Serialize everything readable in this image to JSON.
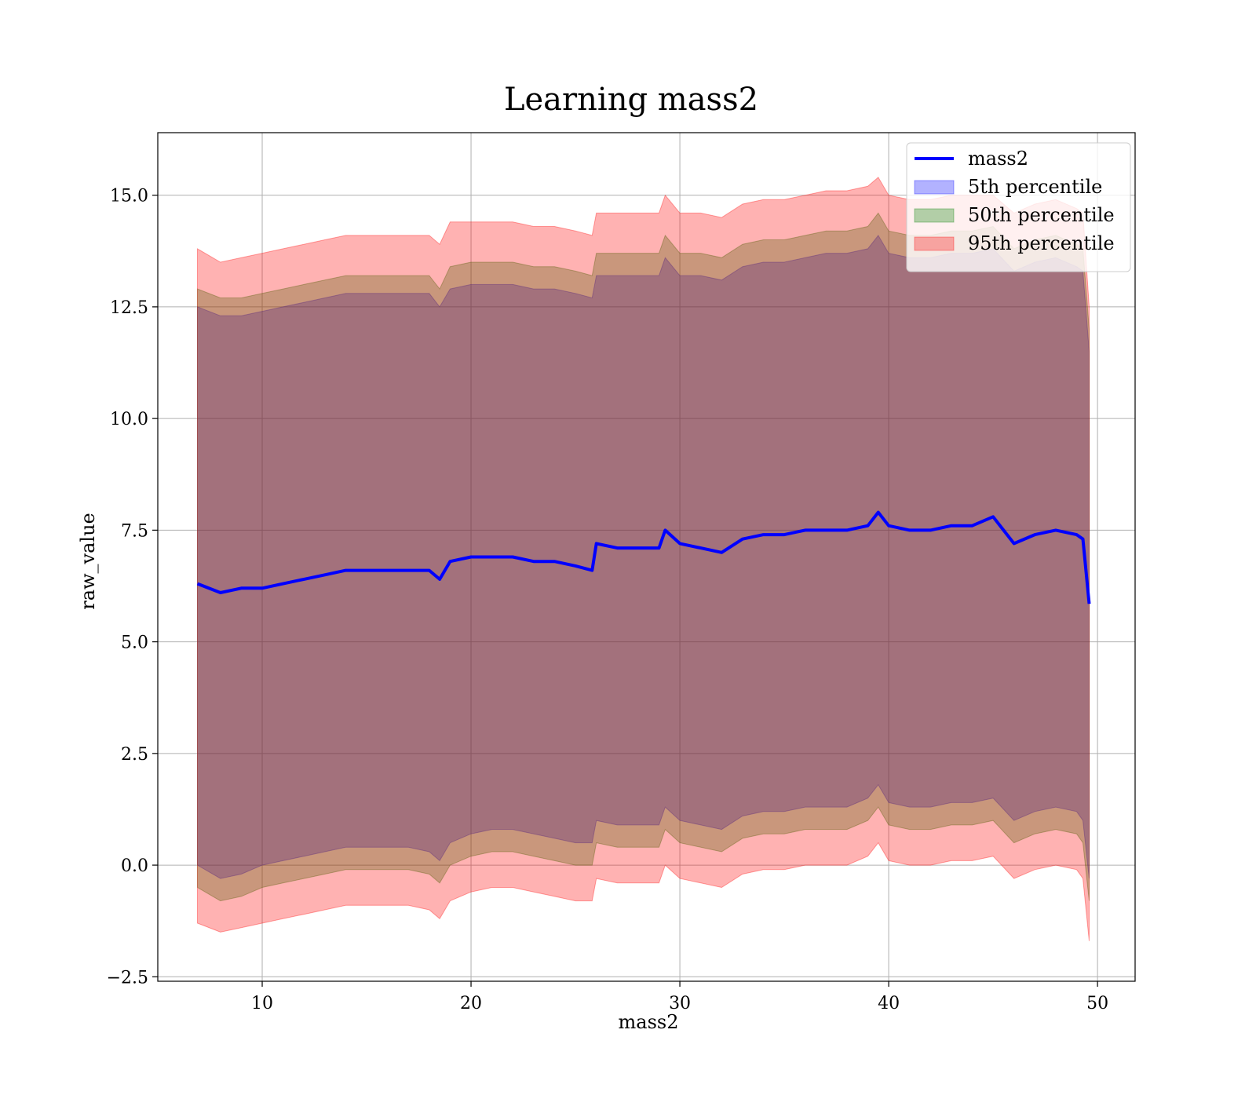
{
  "chart_data": {
    "type": "area",
    "title": "Learning mass2",
    "xlabel": "mass2",
    "ylabel": "raw_value",
    "xlim": [
      5,
      51.8
    ],
    "ylim": [
      -2.6,
      16.4
    ],
    "xticks": [
      10,
      20,
      30,
      40,
      50
    ],
    "yticks": [
      -2.5,
      0.0,
      2.5,
      5.0,
      7.5,
      10.0,
      12.5,
      15.0
    ],
    "xtick_labels": [
      "10",
      "20",
      "30",
      "40",
      "50"
    ],
    "ytick_labels": [
      "−2.5",
      "0.0",
      "2.5",
      "5.0",
      "7.5",
      "10.0",
      "12.5",
      "15.0"
    ],
    "grid": true,
    "legend_position": "top-right",
    "x": [
      6.9,
      8,
      9,
      10,
      11,
      12,
      13,
      14,
      15,
      16,
      17,
      18,
      18.5,
      19,
      20,
      21,
      22,
      23,
      24,
      25,
      25.8,
      26,
      27,
      28,
      29,
      29.3,
      30,
      31,
      32,
      33,
      34,
      35,
      36,
      37,
      38,
      39,
      39.5,
      40,
      41,
      42,
      43,
      44,
      45,
      46,
      47,
      48,
      49,
      49.3,
      49.6
    ],
    "series": [
      {
        "name": "mass2",
        "kind": "line",
        "color": "#0000ff",
        "values": [
          6.3,
          6.1,
          6.2,
          6.2,
          6.3,
          6.4,
          6.5,
          6.6,
          6.6,
          6.6,
          6.6,
          6.6,
          6.4,
          6.8,
          6.9,
          6.9,
          6.9,
          6.8,
          6.8,
          6.7,
          6.6,
          7.2,
          7.1,
          7.1,
          7.1,
          7.5,
          7.2,
          7.1,
          7.0,
          7.3,
          7.4,
          7.4,
          7.5,
          7.5,
          7.5,
          7.6,
          7.9,
          7.6,
          7.5,
          7.5,
          7.6,
          7.6,
          7.8,
          7.2,
          7.4,
          7.5,
          7.4,
          7.3,
          5.85
        ]
      },
      {
        "name": "5th percentile",
        "kind": "band",
        "color": "#0000ff",
        "lower": [
          0.0,
          -0.3,
          -0.2,
          0.0,
          0.1,
          0.2,
          0.3,
          0.4,
          0.4,
          0.4,
          0.4,
          0.3,
          0.1,
          0.5,
          0.7,
          0.8,
          0.8,
          0.7,
          0.6,
          0.5,
          0.5,
          1.0,
          0.9,
          0.9,
          0.9,
          1.3,
          1.0,
          0.9,
          0.8,
          1.1,
          1.2,
          1.2,
          1.3,
          1.3,
          1.3,
          1.5,
          1.8,
          1.4,
          1.3,
          1.3,
          1.4,
          1.4,
          1.5,
          1.0,
          1.2,
          1.3,
          1.2,
          1.0,
          -0.3
        ],
        "upper": [
          12.5,
          12.3,
          12.3,
          12.4,
          12.5,
          12.6,
          12.7,
          12.8,
          12.8,
          12.8,
          12.8,
          12.8,
          12.5,
          12.9,
          13.0,
          13.0,
          13.0,
          12.9,
          12.9,
          12.8,
          12.7,
          13.2,
          13.2,
          13.2,
          13.2,
          13.6,
          13.2,
          13.2,
          13.1,
          13.4,
          13.5,
          13.5,
          13.6,
          13.7,
          13.7,
          13.8,
          14.1,
          13.7,
          13.6,
          13.6,
          13.7,
          13.7,
          13.8,
          13.3,
          13.5,
          13.6,
          13.4,
          13.3,
          11.5
        ]
      },
      {
        "name": "50th percentile",
        "kind": "band",
        "color": "#008000",
        "lower": [
          -0.5,
          -0.8,
          -0.7,
          -0.5,
          -0.4,
          -0.3,
          -0.2,
          -0.1,
          -0.1,
          -0.1,
          -0.1,
          -0.2,
          -0.4,
          0.0,
          0.2,
          0.3,
          0.3,
          0.2,
          0.1,
          0.0,
          0.0,
          0.5,
          0.4,
          0.4,
          0.4,
          0.8,
          0.5,
          0.4,
          0.3,
          0.6,
          0.7,
          0.7,
          0.8,
          0.8,
          0.8,
          1.0,
          1.3,
          0.9,
          0.8,
          0.8,
          0.9,
          0.9,
          1.0,
          0.5,
          0.7,
          0.8,
          0.7,
          0.5,
          -0.8
        ],
        "upper": [
          12.9,
          12.7,
          12.7,
          12.8,
          12.9,
          13.0,
          13.1,
          13.2,
          13.2,
          13.2,
          13.2,
          13.2,
          12.9,
          13.4,
          13.5,
          13.5,
          13.5,
          13.4,
          13.4,
          13.3,
          13.2,
          13.7,
          13.7,
          13.7,
          13.7,
          14.1,
          13.7,
          13.7,
          13.6,
          13.9,
          14.0,
          14.0,
          14.1,
          14.2,
          14.2,
          14.3,
          14.6,
          14.2,
          14.1,
          14.1,
          14.2,
          14.2,
          14.3,
          13.8,
          14.0,
          14.1,
          13.9,
          13.8,
          12.0
        ]
      },
      {
        "name": "95th percentile",
        "kind": "band",
        "color": "#ff0000",
        "lower": [
          -1.3,
          -1.5,
          -1.4,
          -1.3,
          -1.2,
          -1.1,
          -1.0,
          -0.9,
          -0.9,
          -0.9,
          -0.9,
          -1.0,
          -1.2,
          -0.8,
          -0.6,
          -0.5,
          -0.5,
          -0.6,
          -0.7,
          -0.8,
          -0.8,
          -0.3,
          -0.4,
          -0.4,
          -0.4,
          0.0,
          -0.3,
          -0.4,
          -0.5,
          -0.2,
          -0.1,
          -0.1,
          0.0,
          0.0,
          0.0,
          0.2,
          0.5,
          0.1,
          0.0,
          0.0,
          0.1,
          0.1,
          0.2,
          -0.3,
          -0.1,
          0.0,
          -0.1,
          -0.3,
          -1.7
        ],
        "upper": [
          13.8,
          13.5,
          13.6,
          13.7,
          13.8,
          13.9,
          14.0,
          14.1,
          14.1,
          14.1,
          14.1,
          14.1,
          13.9,
          14.4,
          14.4,
          14.4,
          14.4,
          14.3,
          14.3,
          14.2,
          14.1,
          14.6,
          14.6,
          14.6,
          14.6,
          15.0,
          14.6,
          14.6,
          14.5,
          14.8,
          14.9,
          14.9,
          15.0,
          15.1,
          15.1,
          15.2,
          15.4,
          15.0,
          14.9,
          14.9,
          15.0,
          15.0,
          15.0,
          14.6,
          14.8,
          14.9,
          14.7,
          14.6,
          12.5
        ]
      }
    ],
    "legend": [
      {
        "label": "mass2",
        "kind": "line",
        "color": "#0000ff"
      },
      {
        "label": "5th percentile",
        "kind": "patch",
        "color": "#0000ff"
      },
      {
        "label": "50th percentile",
        "kind": "patch",
        "color": "#008000"
      },
      {
        "label": "95th percentile",
        "kind": "patch",
        "color": "#ff0000"
      }
    ]
  }
}
